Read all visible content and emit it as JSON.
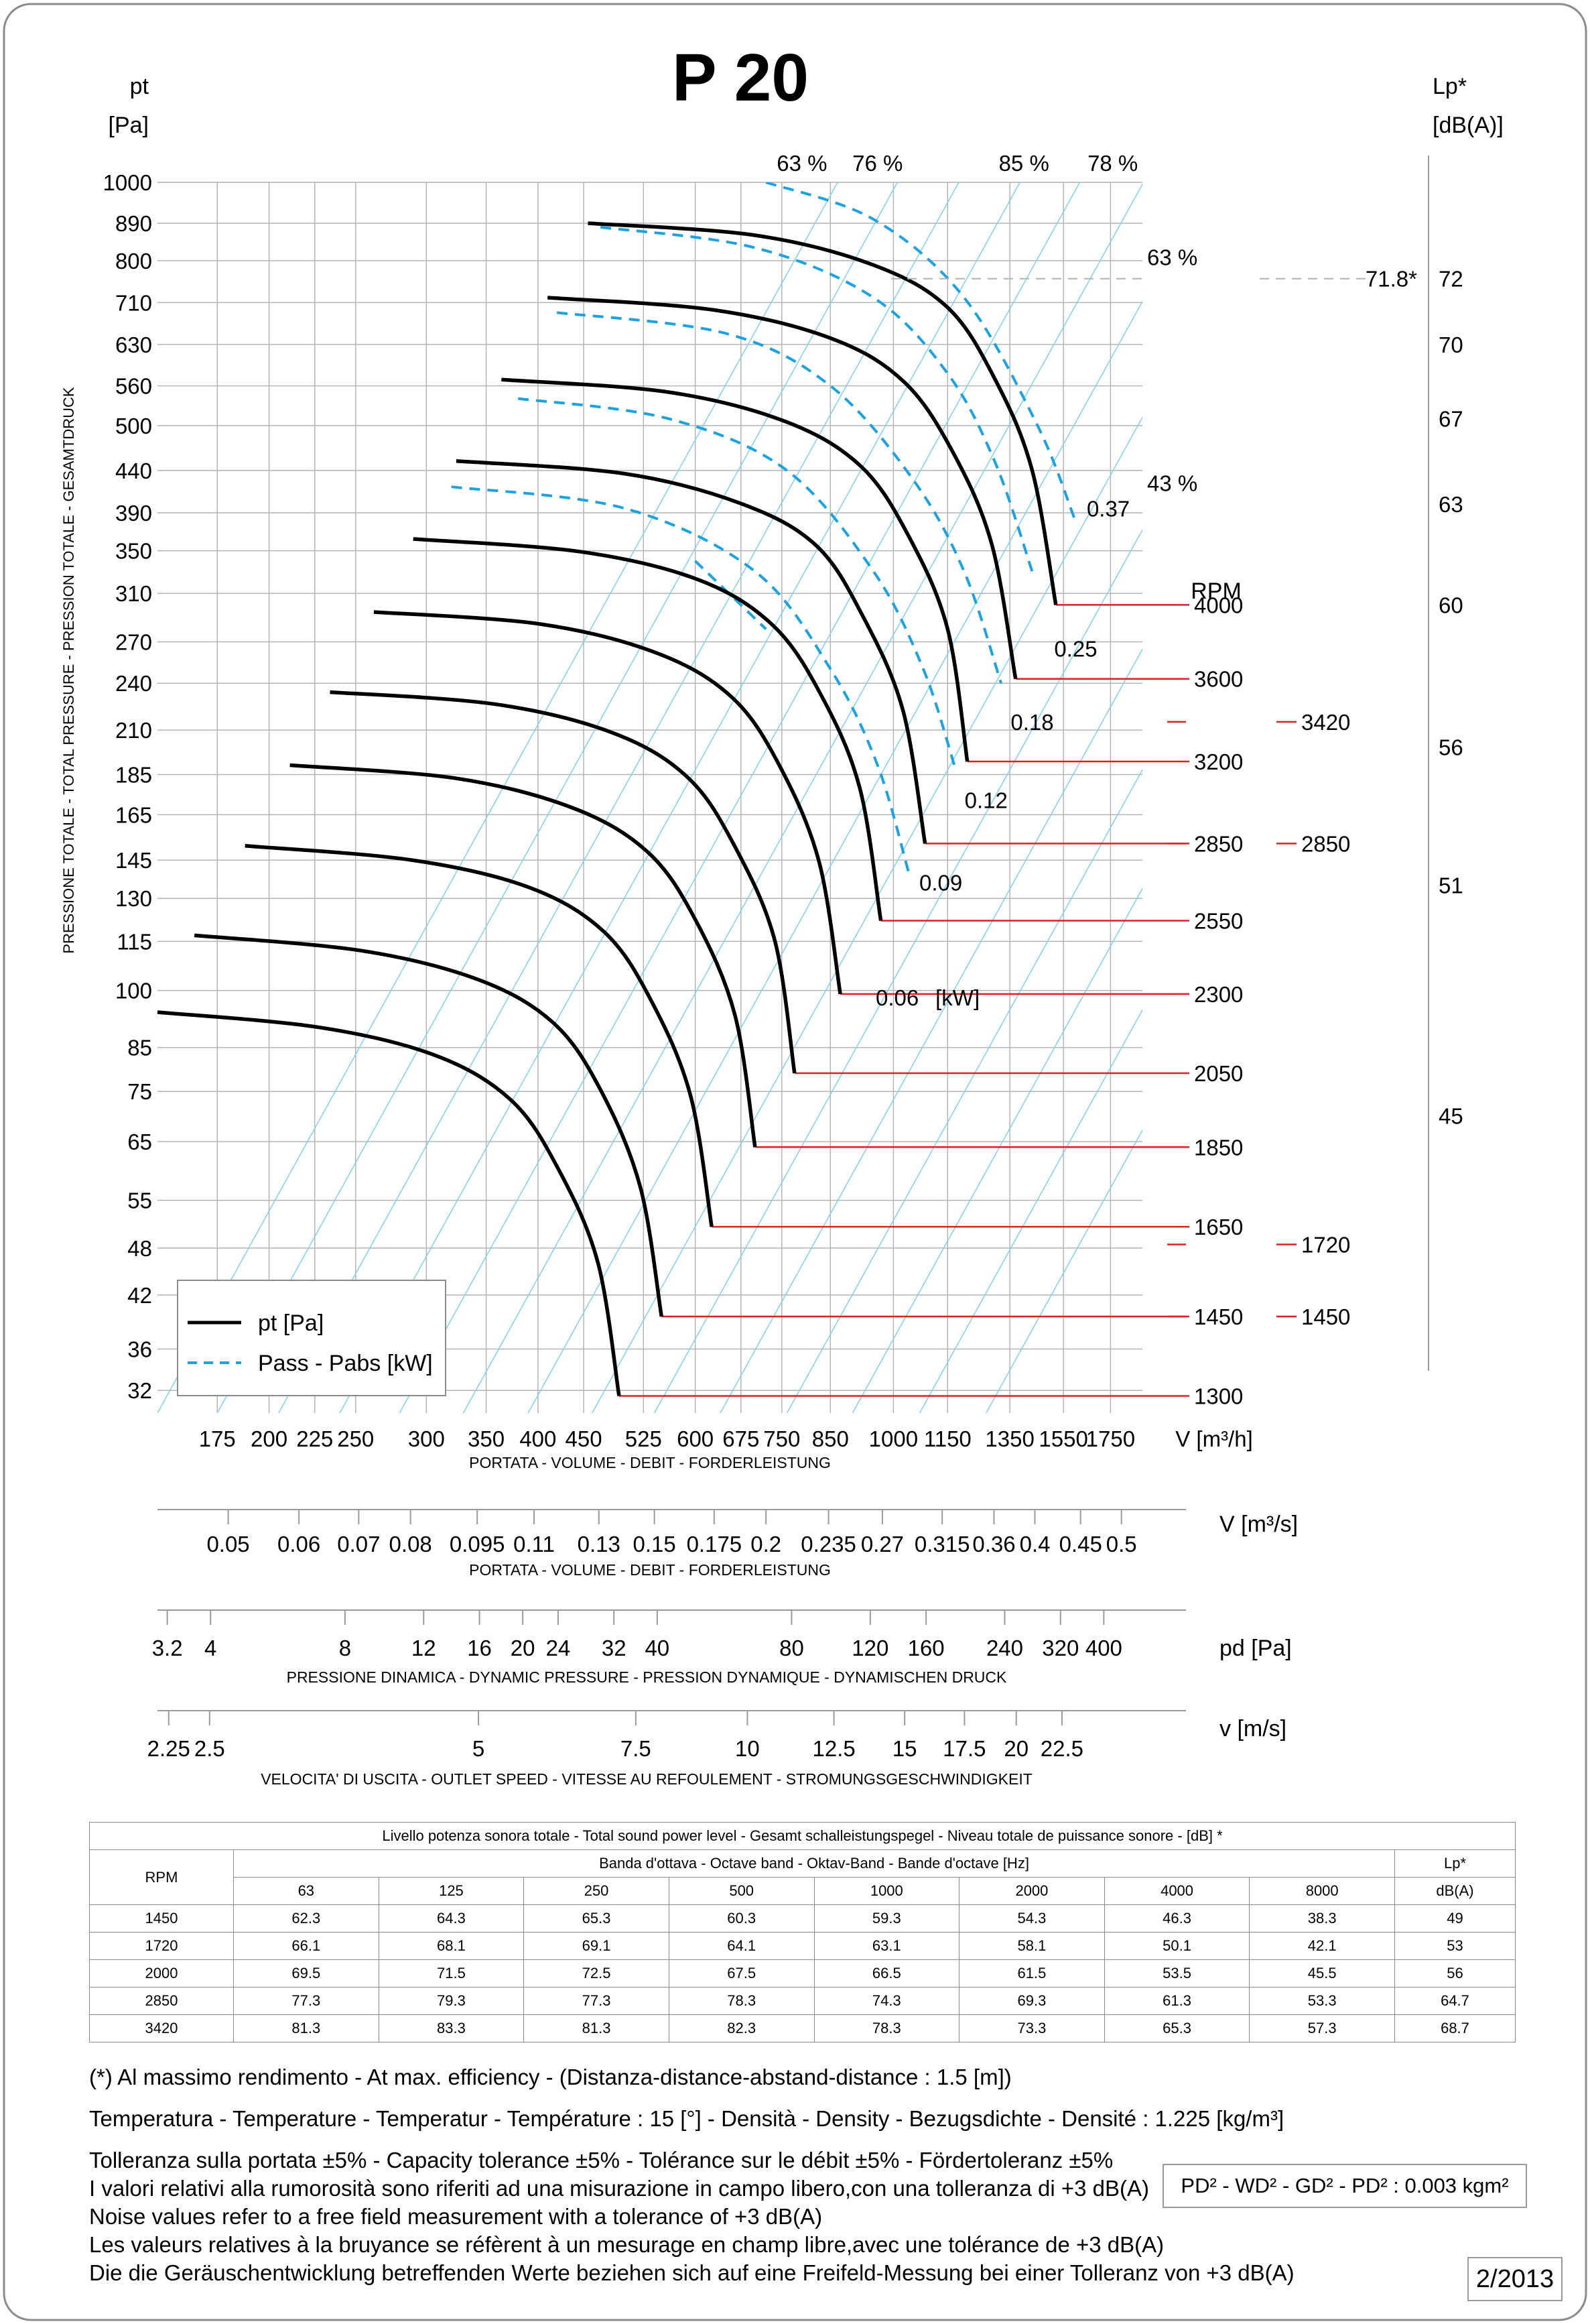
{
  "title": "P 20",
  "left_axis": {
    "title": "pt",
    "unit": "[Pa]"
  },
  "right_axis": {
    "title": "Lp*",
    "unit": "[dB(A)]"
  },
  "y_side_label": "PRESSIONE TOTALE - TOTAL PRESSURE - PRESSION TOTALE - GESAMTDRUCK",
  "rpm_header": "RPM",
  "noise_note_value": "71.8*",
  "power_unit": "[kW]",
  "legend": {
    "solid": "pt [Pa]",
    "dashed": "Pass - Pabs [kW]"
  },
  "colors": {
    "pressure_curve": "#000000",
    "power_curve": "#1aa3e0",
    "grid": "#b4b4b4",
    "efficiency_line": "#7fd0f2",
    "rpm_line": "#e02020"
  },
  "chart_data": {
    "type": "line",
    "log_axes": true,
    "xlabel": "V [m³/h]",
    "x_ticks": [
      "175",
      "200",
      "225",
      "250",
      "300",
      "350",
      "400",
      "450",
      "525",
      "600",
      "675",
      "750",
      "850",
      "1000",
      "1150",
      "1350",
      "1550",
      "1750"
    ],
    "x_caption": "PORTATA - VOLUME - DEBIT - FORDERLEISTUNG",
    "y_ticks": [
      "1000",
      "890",
      "800",
      "710",
      "630",
      "560",
      "500",
      "440",
      "390",
      "350",
      "310",
      "270",
      "240",
      "210",
      "185",
      "165",
      "145",
      "130",
      "115",
      "100",
      "85",
      "75",
      "65",
      "55",
      "48",
      "42",
      "36",
      "32"
    ],
    "ylim": [
      30,
      1000
    ],
    "xlim": [
      150,
      1900
    ],
    "lp_ticks": [
      {
        "label": "72",
        "pt": 760
      },
      {
        "label": "70",
        "pt": 630
      },
      {
        "label": "67",
        "pt": 510
      },
      {
        "label": "63",
        "pt": 400
      },
      {
        "label": "60",
        "pt": 300
      },
      {
        "label": "56",
        "pt": 200
      },
      {
        "label": "51",
        "pt": 135
      },
      {
        "label": "45",
        "pt": 70
      }
    ],
    "rpm_lines": [
      {
        "rpm": "4000",
        "pt": 300,
        "V": 1520
      },
      {
        "rpm": "3600",
        "pt": 243,
        "V": 1370
      },
      {
        "rpm": "3200",
        "pt": 192,
        "V": 1210
      },
      {
        "rpm": "2850",
        "pt": 152,
        "V": 1085
      },
      {
        "rpm": "2550",
        "pt": 122,
        "V": 968
      },
      {
        "rpm": "2300",
        "pt": 99,
        "V": 872
      },
      {
        "rpm": "2050",
        "pt": 79,
        "V": 775
      },
      {
        "rpm": "1850",
        "pt": 64,
        "V": 700
      },
      {
        "rpm": "1650",
        "pt": 51,
        "V": 626
      },
      {
        "rpm": "1450",
        "pt": 39.5,
        "V": 550
      },
      {
        "rpm": "1300",
        "pt": 31.5,
        "V": 493
      }
    ],
    "side_rpm": [
      {
        "rpm": "3420",
        "pt": 215
      },
      {
        "rpm": "2850",
        "pt": 152
      },
      {
        "rpm": "1720",
        "pt": 48.5
      },
      {
        "rpm": "1450",
        "pt": 39.5
      }
    ],
    "series": [
      {
        "name": "4000",
        "points": [
          [
            455,
            890
          ],
          [
            700,
            860
          ],
          [
            950,
            790
          ],
          [
            1150,
            700
          ],
          [
            1300,
            570
          ],
          [
            1430,
            440
          ],
          [
            1520,
            300
          ]
        ]
      },
      {
        "name": "3600",
        "points": [
          [
            410,
            720
          ],
          [
            630,
            695
          ],
          [
            855,
            640
          ],
          [
            1030,
            565
          ],
          [
            1170,
            460
          ],
          [
            1290,
            355
          ],
          [
            1370,
            243
          ]
        ]
      },
      {
        "name": "3200",
        "points": [
          [
            364,
            570
          ],
          [
            560,
            550
          ],
          [
            760,
            505
          ],
          [
            920,
            445
          ],
          [
            1040,
            365
          ],
          [
            1150,
            280
          ],
          [
            1210,
            192
          ]
        ]
      },
      {
        "name": "2850",
        "points": [
          [
            324,
            452
          ],
          [
            500,
            436
          ],
          [
            677,
            400
          ],
          [
            820,
            355
          ],
          [
            925,
            290
          ],
          [
            1025,
            222
          ],
          [
            1085,
            152
          ]
        ]
      },
      {
        "name": "2550",
        "points": [
          [
            290,
            362
          ],
          [
            447,
            349
          ],
          [
            606,
            322
          ],
          [
            733,
            283
          ],
          [
            830,
            232
          ],
          [
            917,
            178
          ],
          [
            968,
            122
          ]
        ]
      },
      {
        "name": "2300",
        "points": [
          [
            262,
            294
          ],
          [
            403,
            284
          ],
          [
            546,
            261
          ],
          [
            661,
            230
          ],
          [
            747,
            189
          ],
          [
            826,
            144
          ],
          [
            872,
            99
          ]
        ]
      },
      {
        "name": "2050",
        "points": [
          [
            234,
            234
          ],
          [
            359,
            226
          ],
          [
            487,
            208
          ],
          [
            590,
            183
          ],
          [
            666,
            150
          ],
          [
            737,
            115
          ],
          [
            775,
            79
          ]
        ]
      },
      {
        "name": "1850",
        "points": [
          [
            211,
            190
          ],
          [
            324,
            183
          ],
          [
            439,
            168
          ],
          [
            532,
            148
          ],
          [
            601,
            122
          ],
          [
            665,
            93
          ],
          [
            700,
            64
          ]
        ]
      },
      {
        "name": "1650",
        "points": [
          [
            188,
            151
          ],
          [
            289,
            145
          ],
          [
            392,
            134
          ],
          [
            475,
            118
          ],
          [
            536,
            97
          ],
          [
            593,
            74
          ],
          [
            626,
            51
          ]
        ]
      },
      {
        "name": "1450",
        "points": [
          [
            165,
            117
          ],
          [
            254,
            112
          ],
          [
            344,
            103
          ],
          [
            417,
            91
          ],
          [
            471,
            75
          ],
          [
            521,
            57
          ],
          [
            550,
            39.5
          ]
        ]
      },
      {
        "name": "1300",
        "points": [
          [
            150,
            94
          ],
          [
            228,
            90
          ],
          [
            308,
            83
          ],
          [
            374,
            73
          ],
          [
            422,
            60
          ],
          [
            467,
            46
          ],
          [
            493,
            31.5
          ]
        ]
      }
    ],
    "power_curves": [
      {
        "label": "0.37",
        "points": [
          [
            720,
            1000
          ],
          [
            950,
            900
          ],
          [
            1200,
            720
          ],
          [
            1450,
            500
          ],
          [
            1600,
            380
          ]
        ]
      },
      {
        "label": "0.25",
        "points": [
          [
            470,
            880
          ],
          [
            700,
            830
          ],
          [
            950,
            720
          ],
          [
            1150,
            580
          ],
          [
            1300,
            450
          ],
          [
            1430,
            330
          ]
        ]
      },
      {
        "label": "0.18",
        "points": [
          [
            420,
            690
          ],
          [
            650,
            650
          ],
          [
            850,
            560
          ],
          [
            1050,
            430
          ],
          [
            1200,
            330
          ],
          [
            1320,
            240
          ]
        ]
      },
      {
        "label": "0.12",
        "points": [
          [
            380,
            540
          ],
          [
            560,
            510
          ],
          [
            760,
            440
          ],
          [
            950,
            330
          ],
          [
            1080,
            250
          ],
          [
            1170,
            190
          ]
        ]
      },
      {
        "label": "0.09",
        "points": [
          [
            320,
            420
          ],
          [
            500,
            395
          ],
          [
            700,
            330
          ],
          [
            850,
            250
          ],
          [
            960,
            190
          ],
          [
            1040,
            140
          ]
        ]
      },
      {
        "label": "0.06",
        "points": [
          [
            600,
            340
          ],
          [
            720,
            280
          ]
        ]
      }
    ],
    "power_labels": [
      {
        "label": "0.37",
        "V": 1740,
        "pt": 395
      },
      {
        "label": "0.25",
        "V": 1600,
        "pt": 265
      },
      {
        "label": "0.18",
        "V": 1430,
        "pt": 215
      },
      {
        "label": "0.12",
        "V": 1270,
        "pt": 172
      },
      {
        "label": "0.09",
        "V": 1130,
        "pt": 136
      },
      {
        "label": "0.06",
        "V": 1010,
        "pt": 98
      }
    ],
    "efficiency_labels": [
      {
        "label": "63 %",
        "V": 790,
        "pt": 1060
      },
      {
        "label": "76 %",
        "V": 960,
        "pt": 1060
      },
      {
        "label": "85 %",
        "V": 1400,
        "pt": 1060
      },
      {
        "label": "78 %",
        "V": 1760,
        "pt": 1060
      },
      {
        "label": "63 %",
        "V": 1800,
        "pt": 790
      },
      {
        "label": "43 %",
        "V": 1790,
        "pt": 415
      }
    ],
    "x2_label": "V [m³/s]",
    "x2_ticks": [
      "0.05",
      "0.06",
      "0.07",
      "0.08",
      "0.095",
      "0.11",
      "0.13",
      "0.15",
      "0.175",
      "0.2",
      "0.235",
      "0.27",
      "0.315",
      "0.36",
      "0.4",
      "0.45",
      "0.5"
    ],
    "pd_label": "pd [Pa]",
    "pd_ticks": [
      "3.2",
      "4",
      "8",
      "12",
      "16",
      "20",
      "24",
      "32",
      "40",
      "80",
      "120",
      "160",
      "240",
      "320",
      "400"
    ],
    "pd_caption": "PRESSIONE DINAMICA - DYNAMIC PRESSURE - PRESSION DYNAMIQUE - DYNAMISCHEN DRUCK",
    "v_label": "v [m/s]",
    "v_ticks": [
      "2.25",
      "2.5",
      "5",
      "7.5",
      "10",
      "12.5",
      "15",
      "17.5",
      "20",
      "22.5"
    ],
    "v_caption": "VELOCITA' DI USCITA - OUTLET SPEED - VITESSE AU REFOULEMENT - STROMUNGSGESCHWINDIGKEIT"
  },
  "sound_table": {
    "title": "Livello potenza sonora totale - Total sound power level - Gesamt schalleistungspegel - Niveau totale de puissance sonore - [dB]   *",
    "band_header": "Banda d'ottava - Octave band - Oktav-Band - Bande d'octave [Hz]",
    "rpm_header": "RPM",
    "lp_header": "Lp*",
    "lp_unit": "dB(A)",
    "bands": [
      "63",
      "125",
      "250",
      "500",
      "1000",
      "2000",
      "4000",
      "8000"
    ],
    "rows": [
      {
        "rpm": "1450",
        "values": [
          "62.3",
          "64.3",
          "65.3",
          "60.3",
          "59.3",
          "54.3",
          "46.3",
          "38.3"
        ],
        "lp": "49"
      },
      {
        "rpm": "1720",
        "values": [
          "66.1",
          "68.1",
          "69.1",
          "64.1",
          "63.1",
          "58.1",
          "50.1",
          "42.1"
        ],
        "lp": "53"
      },
      {
        "rpm": "2000",
        "values": [
          "69.5",
          "71.5",
          "72.5",
          "67.5",
          "66.5",
          "61.5",
          "53.5",
          "45.5"
        ],
        "lp": "56"
      },
      {
        "rpm": "2850",
        "values": [
          "77.3",
          "79.3",
          "77.3",
          "78.3",
          "74.3",
          "69.3",
          "61.3",
          "53.3"
        ],
        "lp": "64.7"
      },
      {
        "rpm": "3420",
        "values": [
          "81.3",
          "83.3",
          "81.3",
          "82.3",
          "78.3",
          "73.3",
          "65.3",
          "57.3"
        ],
        "lp": "68.7"
      }
    ]
  },
  "notes": {
    "line1": "(*) Al massimo rendimento - At max. efficiency - (Distanza-distance-abstand-distance : 1.5 [m])",
    "line2": "Temperatura - Temperature - Temperatur - Température : 15 [°]  -  Densità - Density - Bezugsdichte - Densité : 1.225 [kg/m³]",
    "line3": "Tolleranza sulla portata  ±5% - Capacity tolerance ±5% - Tolérance sur le débit ±5% - Fördertoleranz ±5%",
    "line4": "I valori relativi alla rumorosità sono riferiti ad una misurazione in campo libero,con una tolleranza di +3 dB(A)",
    "line5": "Noise values refer to a free field measurement with a tolerance of +3 dB(A)",
    "line6": "Les valeurs relatives à la bruyance se réfèrent à un mesurage en champ libre,avec une tolérance de +3 dB(A)",
    "line7": "Die die Geräuschentwicklung betreffenden Werte beziehen sich auf eine Freifeld-Messung bei einer Tolleranz von +3 dB(A)"
  },
  "inertia": "PD² -  WD² - GD² -  PD²  :  0.003 kgm²",
  "revision": "2/2013"
}
